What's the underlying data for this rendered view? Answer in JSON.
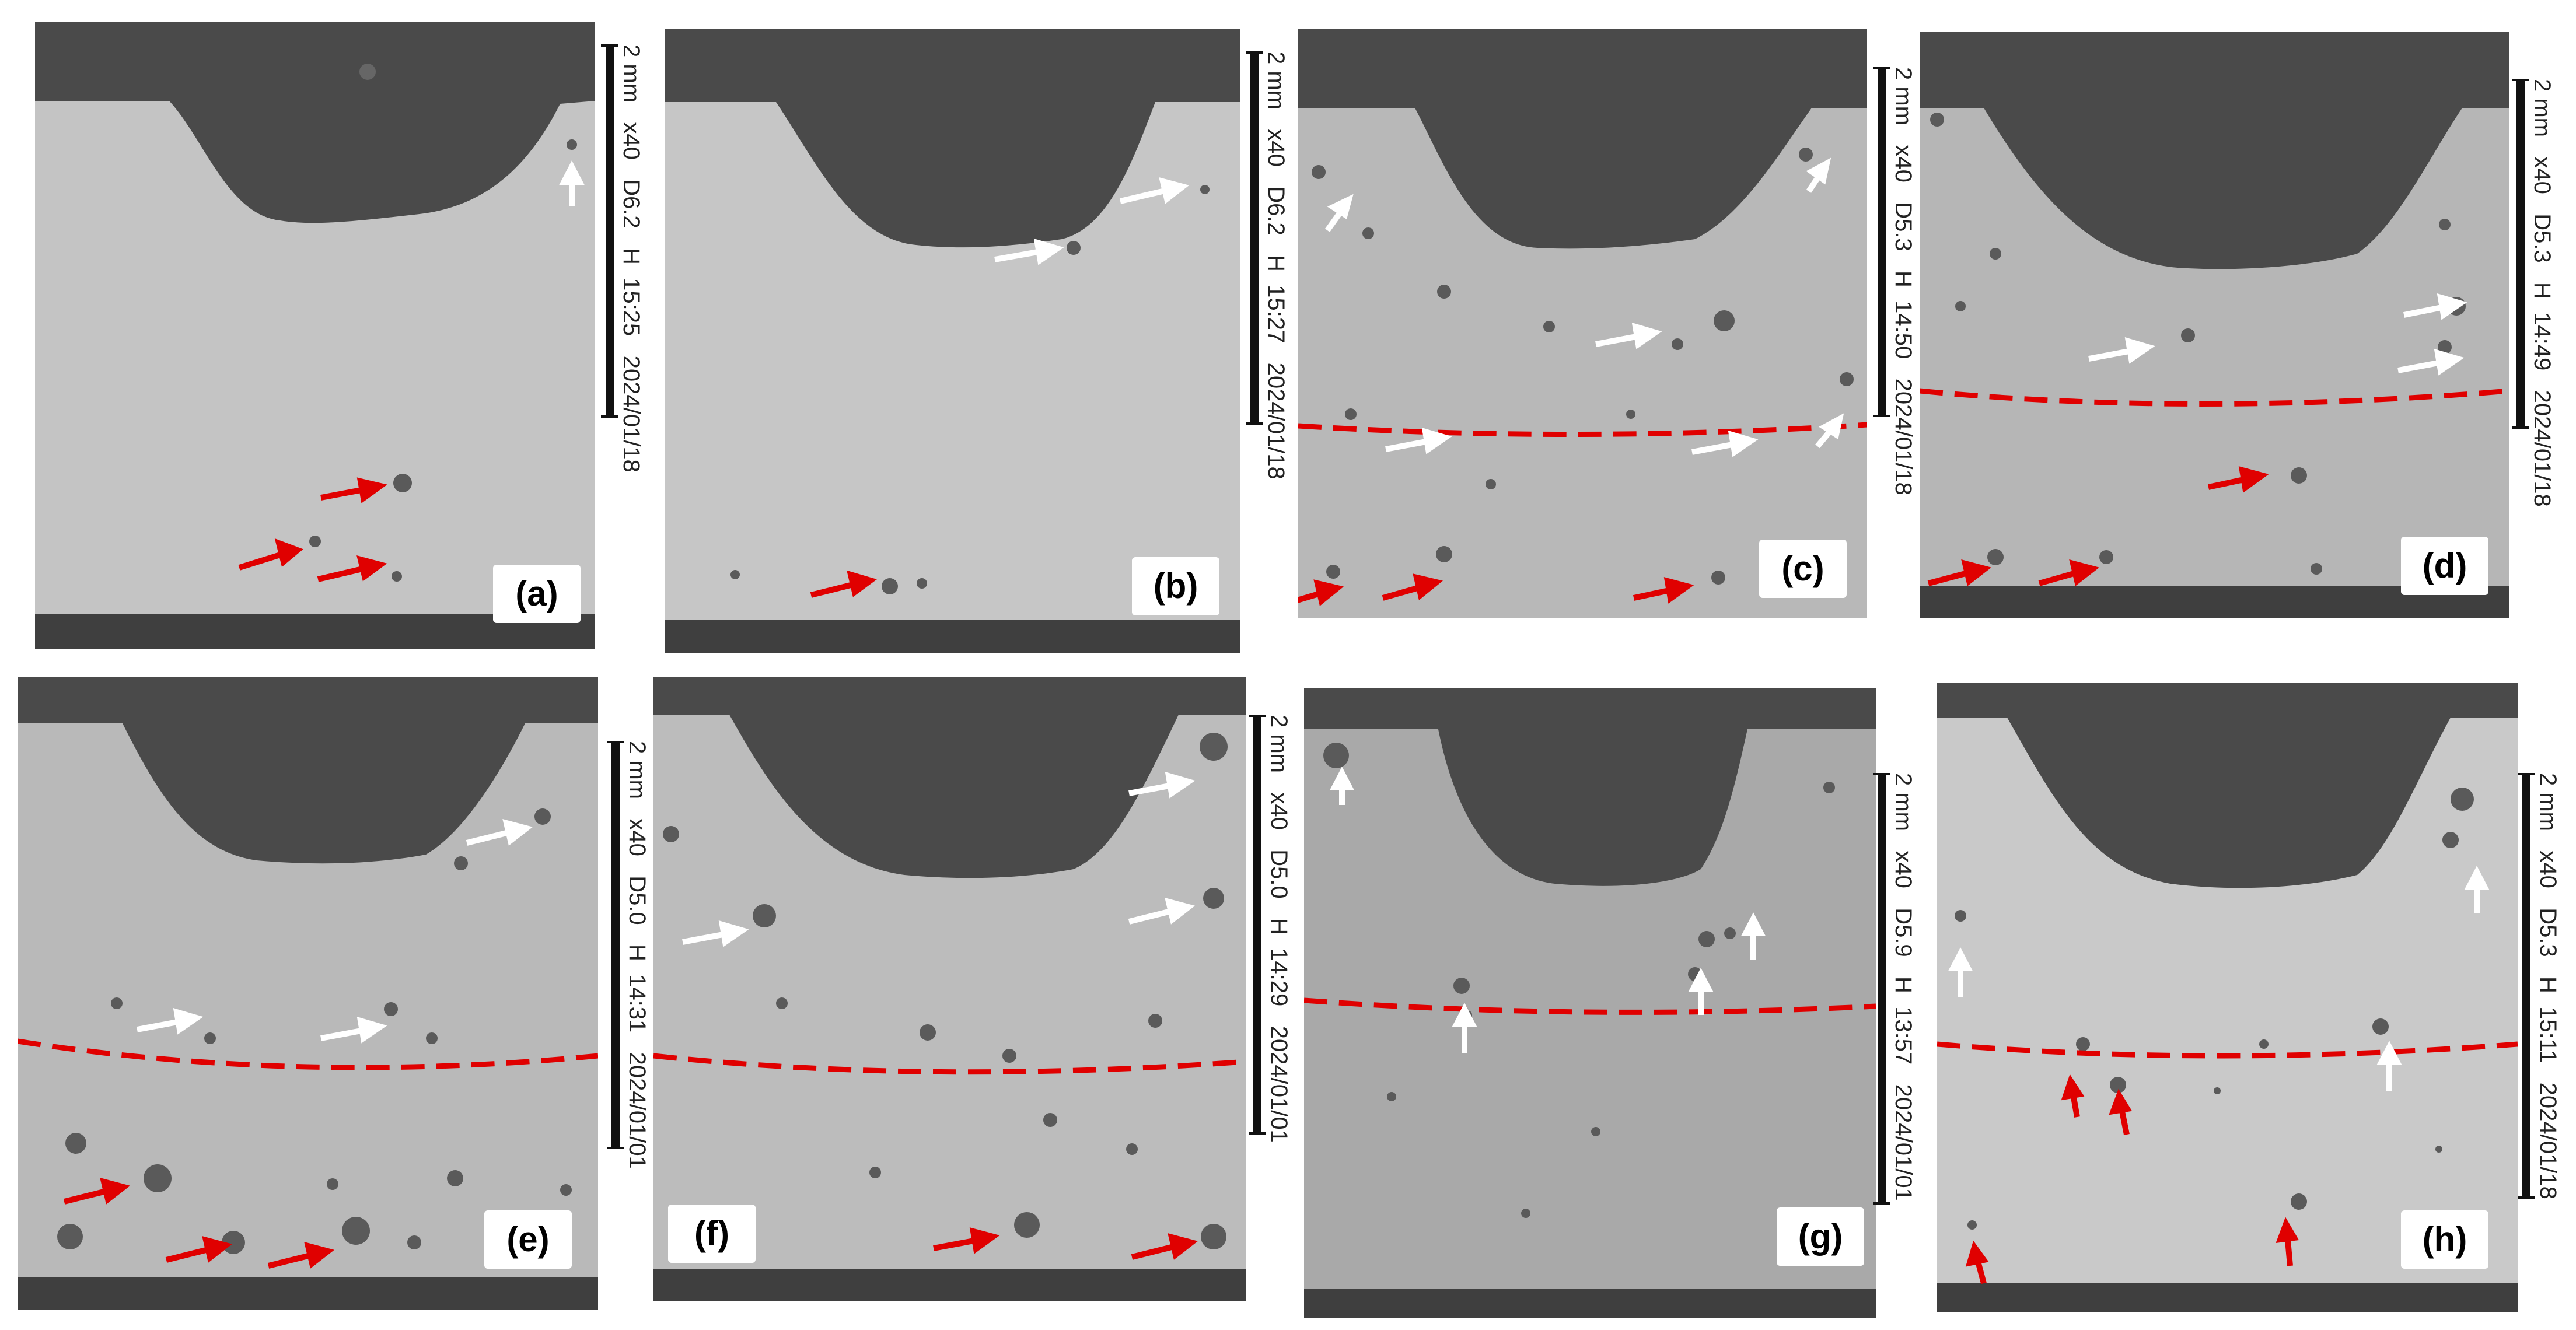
{
  "figure": {
    "panels": [
      {
        "label": "(a)",
        "date": "2024/01/18",
        "time": "15:25",
        "mode": "H",
        "wd": "D6.2",
        "mag": "x40",
        "scale_text": "2 mm",
        "tone": "#c4c4c4",
        "interface_line": false
      },
      {
        "label": "(b)",
        "date": "2024/01/18",
        "time": "15:27",
        "mode": "H",
        "wd": "D6.2",
        "mag": "x40",
        "scale_text": "2 mm",
        "tone": "#c6c6c6",
        "interface_line": false
      },
      {
        "label": "(c)",
        "date": "2024/01/18",
        "time": "14:50",
        "mode": "H",
        "wd": "D5.3",
        "mag": "x40",
        "scale_text": "2 mm",
        "tone": "#b8b8b8",
        "interface_line": true
      },
      {
        "label": "(d)",
        "date": "2024/01/18",
        "time": "14:49",
        "mode": "H",
        "wd": "D5.3",
        "mag": "x40",
        "scale_text": "2 mm",
        "tone": "#b6b6b6",
        "interface_line": true
      },
      {
        "label": "(e)",
        "date": "2024/01/01",
        "time": "14:31",
        "mode": "H",
        "wd": "D5.0",
        "mag": "x40",
        "scale_text": "2 mm",
        "tone": "#b9b9b9",
        "interface_line": true
      },
      {
        "label": "(f)",
        "date": "2024/01/01",
        "time": "14:29",
        "mode": "H",
        "wd": "D5.0",
        "mag": "x40",
        "scale_text": "2 mm",
        "tone": "#bcbcbc",
        "interface_line": true
      },
      {
        "label": "(g)",
        "date": "2024/01/01",
        "time": "13:57",
        "mode": "H",
        "wd": "D5.9",
        "mag": "x40",
        "scale_text": "2 mm",
        "tone": "#a9a9a9",
        "interface_line": true
      },
      {
        "label": "(h)",
        "date": "2024/01/18",
        "time": "15:11",
        "mode": "H",
        "wd": "D5.3",
        "mag": "x40",
        "scale_text": "2 mm",
        "tone": "#c9c9c9",
        "interface_line": true
      }
    ],
    "colors": {
      "matrix_dark": "#4a4a4a",
      "interface_line": "#e00000",
      "arrow_red": "#e00000",
      "arrow_white": "#ffffff"
    }
  }
}
